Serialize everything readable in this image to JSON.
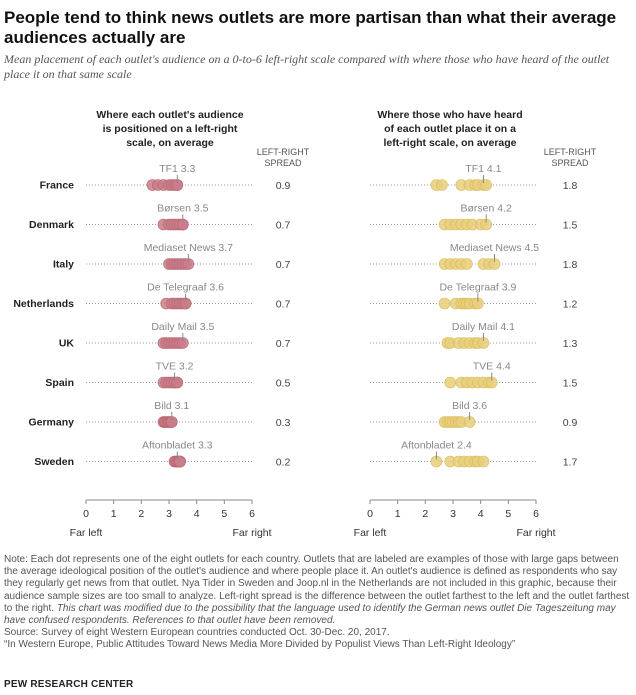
{
  "title": "People tend to think news outlets are more partisan than what their average audiences actually are",
  "subtitle": "Mean placement of each outlet's audience on a 0-to-6 left-right scale compared with where those who have heard of the outlet place it on that same scale",
  "colors": {
    "audience": "#c97d8a",
    "perceived": "#e8cf7c",
    "tick": "#888888",
    "dots_line": "#9a9a9a"
  },
  "chart_data": {
    "type": "scatter",
    "scale": {
      "min": 0,
      "max": 6,
      "ticks": [
        0,
        1,
        2,
        3,
        4,
        5,
        6
      ],
      "left_label": "Far left",
      "right_label": "Far right"
    },
    "spread_header_line1": "LEFT-RIGHT",
    "spread_header_line2": "SPREAD",
    "panels": [
      {
        "name": "audience",
        "header": [
          "Where each outlet's audience",
          "is positioned on a left-right",
          "scale, on average"
        ],
        "rows": [
          {
            "country": "France",
            "label": "TF1 3.3",
            "highlight": 3.3,
            "dots": [
              2.4,
              2.6,
              2.8,
              3.0,
              3.1,
              3.2,
              3.3,
              3.3
            ],
            "spread": "0.9"
          },
          {
            "country": "Denmark",
            "label": "Børsen 3.5",
            "highlight": 3.5,
            "dots": [
              2.8,
              3.0,
              3.1,
              3.2,
              3.3,
              3.4,
              3.5,
              3.5
            ],
            "spread": "0.7"
          },
          {
            "country": "Italy",
            "label": "Mediaset News 3.7",
            "highlight": 3.7,
            "dots": [
              3.0,
              3.1,
              3.2,
              3.3,
              3.4,
              3.5,
              3.6,
              3.7
            ],
            "spread": "0.7"
          },
          {
            "country": "Netherlands",
            "label": "De Telegraaf 3.6",
            "highlight": 3.6,
            "dots": [
              2.9,
              3.1,
              3.2,
              3.3,
              3.4,
              3.5,
              3.6,
              3.6
            ],
            "spread": "0.7"
          },
          {
            "country": "UK",
            "label": "Daily Mail 3.5",
            "highlight": 3.5,
            "dots": [
              2.8,
              2.9,
              3.0,
              3.1,
              3.2,
              3.3,
              3.4,
              3.5
            ],
            "spread": "0.7"
          },
          {
            "country": "Spain",
            "label": "TVE 3.2",
            "highlight": 3.2,
            "dots": [
              2.8,
              2.9,
              3.0,
              3.1,
              3.2,
              3.2,
              3.3,
              3.3
            ],
            "spread": "0.5"
          },
          {
            "country": "Germany",
            "label": "Bild 3.1",
            "highlight": 3.1,
            "dots": [
              2.8,
              2.85,
              2.9,
              2.95,
              3.0,
              3.05,
              3.1,
              3.1
            ],
            "spread": "0.3"
          },
          {
            "country": "Sweden",
            "label": "Aftonbladet 3.3",
            "highlight": 3.3,
            "dots": [
              3.2,
              3.25,
              3.3,
              3.3,
              3.35,
              3.4,
              3.4,
              3.4
            ],
            "spread": "0.2"
          }
        ]
      },
      {
        "name": "perceived",
        "header": [
          "Where those who have heard",
          "of each outlet place it on a",
          "left-right scale, on average"
        ],
        "rows": [
          {
            "country": "France",
            "label": "TF1 4.1",
            "highlight": 4.1,
            "dots": [
              2.4,
              2.6,
              3.3,
              3.6,
              3.8,
              3.9,
              4.1,
              4.2
            ],
            "spread": "1.8"
          },
          {
            "country": "Denmark",
            "label": "Børsen 4.2",
            "highlight": 4.2,
            "dots": [
              2.7,
              2.9,
              3.1,
              3.3,
              3.5,
              3.7,
              4.0,
              4.2
            ],
            "spread": "1.5"
          },
          {
            "country": "Italy",
            "label": "Mediaset News 4.5",
            "highlight": 4.5,
            "dots": [
              2.7,
              2.9,
              3.1,
              3.3,
              3.5,
              4.1,
              4.3,
              4.5
            ],
            "spread": "1.8"
          },
          {
            "country": "Netherlands",
            "label": "De Telegraaf 3.9",
            "highlight": 3.9,
            "dots": [
              2.7,
              3.1,
              3.3,
              3.4,
              3.5,
              3.6,
              3.8,
              3.9
            ],
            "spread": "1.2"
          },
          {
            "country": "UK",
            "label": "Daily Mail 4.1",
            "highlight": 4.1,
            "dots": [
              2.8,
              2.9,
              3.2,
              3.4,
              3.6,
              3.8,
              3.9,
              4.1
            ],
            "spread": "1.3"
          },
          {
            "country": "Spain",
            "label": "TVE 4.4",
            "highlight": 4.4,
            "dots": [
              2.9,
              3.3,
              3.5,
              3.7,
              3.9,
              4.1,
              4.3,
              4.4
            ],
            "spread": "1.5"
          },
          {
            "country": "Germany",
            "label": "Bild 3.6",
            "highlight": 3.6,
            "dots": [
              2.7,
              2.8,
              2.9,
              3.0,
              3.1,
              3.2,
              3.3,
              3.6
            ],
            "spread": "0.9"
          },
          {
            "country": "Sweden",
            "label": "Aftonbladet 2.4",
            "highlight": 2.4,
            "dots": [
              2.4,
              2.9,
              3.2,
              3.4,
              3.6,
              3.8,
              3.9,
              4.1
            ],
            "spread": "1.7"
          }
        ]
      }
    ]
  },
  "notes": {
    "note": "Note: Each dot represents one of the eight outlets for each country. Outlets that are labeled are examples of those with large gaps between the average ideological position of the outlet's audience and where people place it. An outlet's audience is defined as respondents who say they regularly get news from that outlet. Nya Tider in Sweden and Joop.nl in the Netherlands are not included in this graphic, because their audience sample sizes are too small to analyze. Left-right spread is the difference between the outlet farthest to the left and the outlet farthest to the right.",
    "note_italic": "This chart was modified due to the possibility that the language used to identify the German news outlet Die Tageszeitung may have confused respondents. References to that outlet have been removed.",
    "source": "Source: Survey of eight Western European countries conducted Oct. 30-Dec. 20, 2017.",
    "report": "“In Western Europe, Public Attitudes Toward News Media More Divided by Populist Views Than Left-Right Ideology”"
  },
  "brand": "PEW RESEARCH CENTER"
}
